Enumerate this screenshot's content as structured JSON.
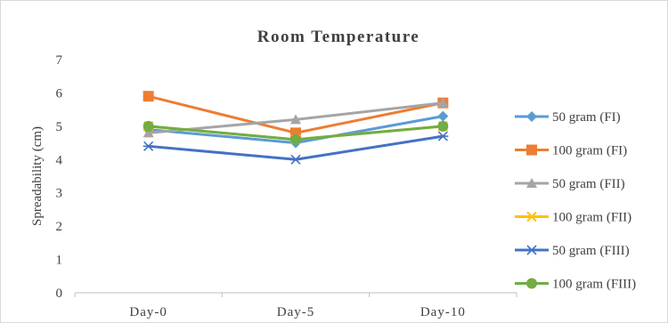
{
  "chart_data": {
    "type": "line",
    "title": "Room Temperature",
    "xlabel": "",
    "ylabel": "Spreadability (cm)",
    "categories": [
      "Day-0",
      "Day-5",
      "Day-10"
    ],
    "ylim": [
      0,
      7
    ],
    "yticks": [
      0,
      1,
      2,
      3,
      4,
      5,
      6,
      7
    ],
    "grid": false,
    "legend_position": "right",
    "series": [
      {
        "name": "50 gram (FI)",
        "values": [
          4.9,
          4.5,
          5.3
        ],
        "color": "#5b9bd5",
        "marker": "diamond"
      },
      {
        "name": "100 gram (FI)",
        "values": [
          5.9,
          4.8,
          5.7
        ],
        "color": "#ed7d31",
        "marker": "square"
      },
      {
        "name": "50 gram (FII)",
        "values": [
          4.8,
          5.2,
          5.7
        ],
        "color": "#a5a5a5",
        "marker": "triangle"
      },
      {
        "name": "100 gram (FII)",
        "values": [
          5.0,
          4.6,
          5.0
        ],
        "color": "#ffc000",
        "marker": "x"
      },
      {
        "name": "50 gram (FIII)",
        "values": [
          4.4,
          4.0,
          4.7
        ],
        "color": "#4472c4",
        "marker": "star"
      },
      {
        "name": "100 gram (FIII)",
        "values": [
          5.0,
          4.6,
          5.0
        ],
        "color": "#70ad47",
        "marker": "circle"
      }
    ]
  }
}
